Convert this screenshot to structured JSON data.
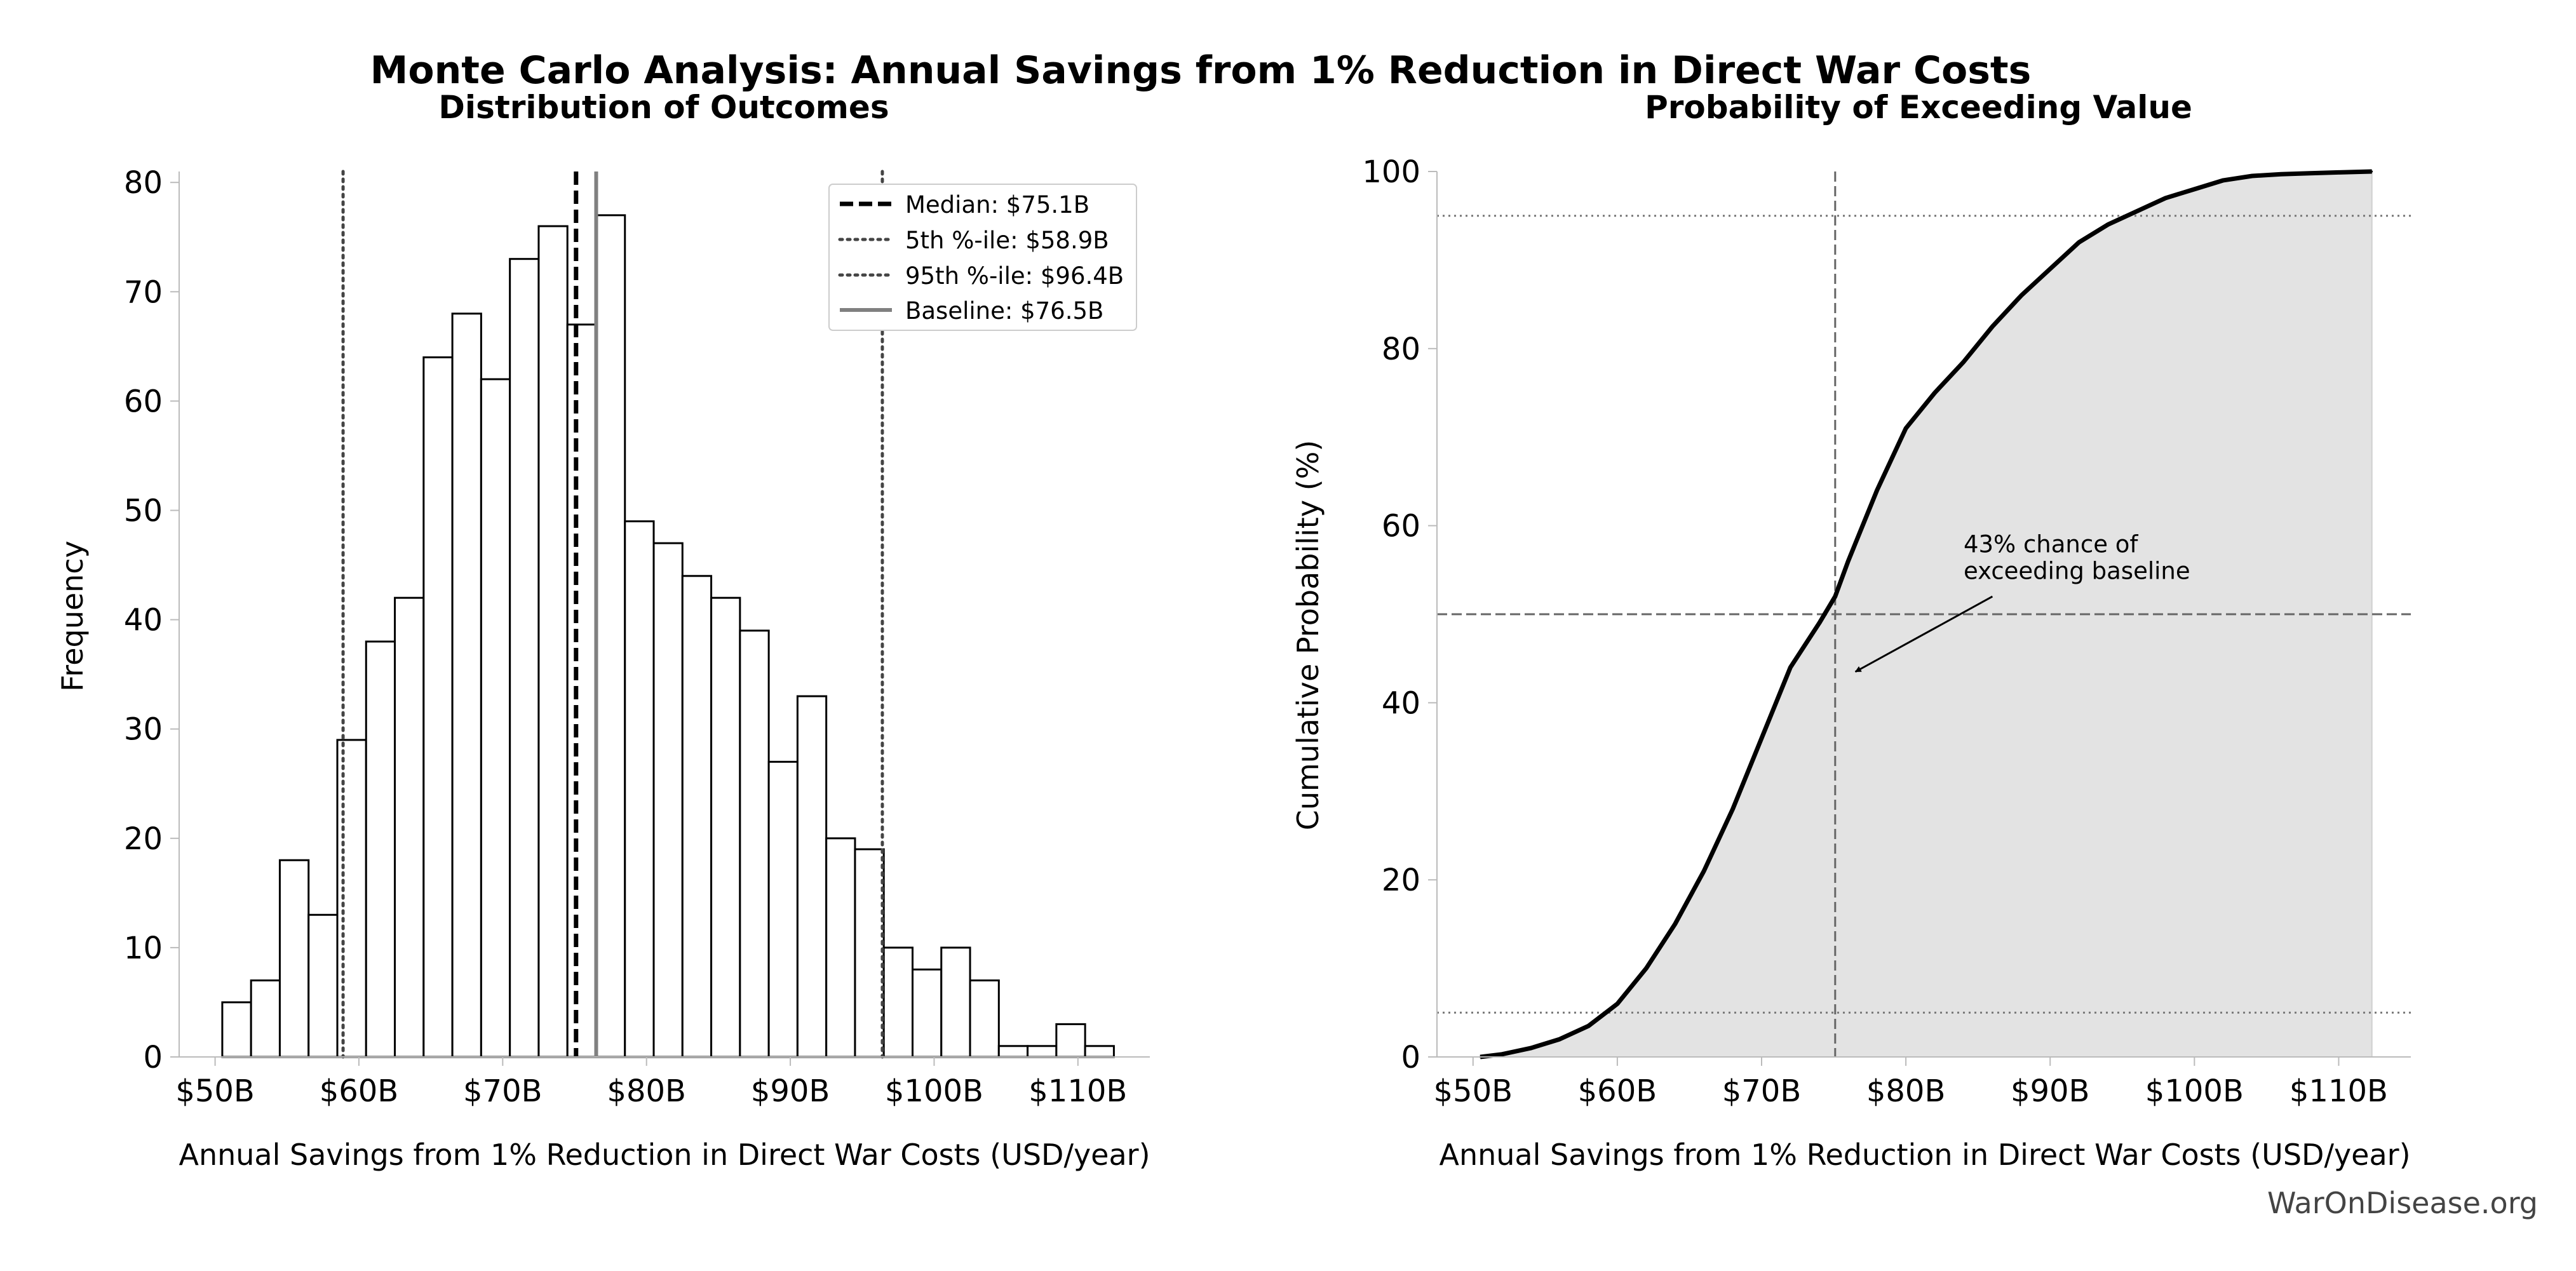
{
  "figure": {
    "title": "Monte Carlo Analysis: Annual Savings from 1% Reduction in Direct War Costs",
    "watermark": "WarOnDisease.org"
  },
  "chart_data": [
    {
      "type": "bar",
      "subtype": "histogram",
      "title": "Distribution of Outcomes",
      "xlabel": "Annual Savings from 1% Reduction in Direct War Costs (USD/year)",
      "ylabel": "Frequency",
      "xlim": [
        47.5,
        115
      ],
      "ylim": [
        0,
        81
      ],
      "xticks": [
        50,
        60,
        70,
        80,
        90,
        100,
        110
      ],
      "xtick_labels": [
        "$50B",
        "$60B",
        "$70B",
        "$80B",
        "$90B",
        "$100B",
        "$110B"
      ],
      "yticks": [
        0,
        10,
        20,
        30,
        40,
        50,
        60,
        70,
        80
      ],
      "bin_edges": [
        50.5,
        52.5,
        54.5,
        56.5,
        58.5,
        60.5,
        62.5,
        64.5,
        66.5,
        68.5,
        70.5,
        72.5,
        74.5,
        76.5,
        78.5,
        80.5,
        82.5,
        84.5,
        86.5,
        88.5,
        90.5,
        92.5,
        94.5,
        96.5,
        98.5,
        100.5,
        102.5,
        104.5,
        106.5,
        108.5,
        110.5,
        112.5
      ],
      "values": [
        5,
        7,
        18,
        13,
        29,
        38,
        42,
        64,
        68,
        62,
        73,
        76,
        67,
        77,
        49,
        47,
        44,
        42,
        39,
        27,
        33,
        20,
        19,
        10,
        8,
        10,
        7,
        1,
        1,
        3,
        1
      ],
      "bar_fill": "#ffffff",
      "bar_edge": "#000000",
      "reference_lines": [
        {
          "label": "Median: $75.1B",
          "x": 75.1,
          "style": "dashed",
          "color": "#000000"
        },
        {
          "label": "5th %-ile: $58.9B",
          "x": 58.9,
          "style": "dotted",
          "color": "#444444"
        },
        {
          "label": "95th %-ile: $96.4B",
          "x": 96.4,
          "style": "dotted",
          "color": "#444444"
        },
        {
          "label": "Baseline: $76.5B",
          "x": 76.5,
          "style": "solid",
          "color": "#808080"
        }
      ],
      "legend": "top-right"
    },
    {
      "type": "area",
      "title": "Probability of Exceeding Value",
      "xlabel": "Annual Savings from 1% Reduction in Direct War Costs (USD/year)",
      "ylabel": "Cumulative Probability (%)",
      "xlim": [
        47.5,
        115
      ],
      "ylim": [
        0,
        100
      ],
      "xticks": [
        50,
        60,
        70,
        80,
        90,
        100,
        110
      ],
      "xtick_labels": [
        "$50B",
        "$60B",
        "$70B",
        "$80B",
        "$90B",
        "$100B",
        "$110B"
      ],
      "yticks": [
        0,
        20,
        40,
        60,
        80,
        100
      ],
      "x": [
        50.5,
        52,
        54,
        56,
        58,
        60,
        62,
        64,
        66,
        68,
        70,
        72,
        74,
        75.1,
        76,
        78,
        80,
        82,
        84,
        86,
        88,
        90,
        92,
        94,
        96,
        98,
        100,
        102,
        104,
        106,
        108,
        110,
        112.3
      ],
      "y": [
        0,
        0.3,
        1,
        2,
        3.5,
        6,
        10,
        15,
        21,
        28,
        36,
        44,
        49,
        52,
        56,
        64,
        71,
        75,
        78.5,
        82.5,
        86,
        89,
        92,
        94,
        95.5,
        97,
        98,
        99,
        99.5,
        99.7,
        99.8,
        99.9,
        100
      ],
      "fill_color": "#e3e3e3",
      "line_color": "#000000",
      "reference_lines": [
        {
          "orientation": "horizontal",
          "y": 95,
          "style": "dotted"
        },
        {
          "orientation": "horizontal",
          "y": 50,
          "style": "dashed"
        },
        {
          "orientation": "horizontal",
          "y": 5,
          "style": "dotted"
        },
        {
          "orientation": "vertical",
          "x": 75.1,
          "style": "dashed"
        }
      ],
      "annotation": {
        "text_lines": [
          "43% chance of",
          "exceeding baseline"
        ],
        "text_at": [
          84,
          57
        ],
        "arrow_from": [
          86,
          52
        ],
        "arrow_to": [
          76.5,
          43.5
        ]
      },
      "grid": false
    }
  ]
}
